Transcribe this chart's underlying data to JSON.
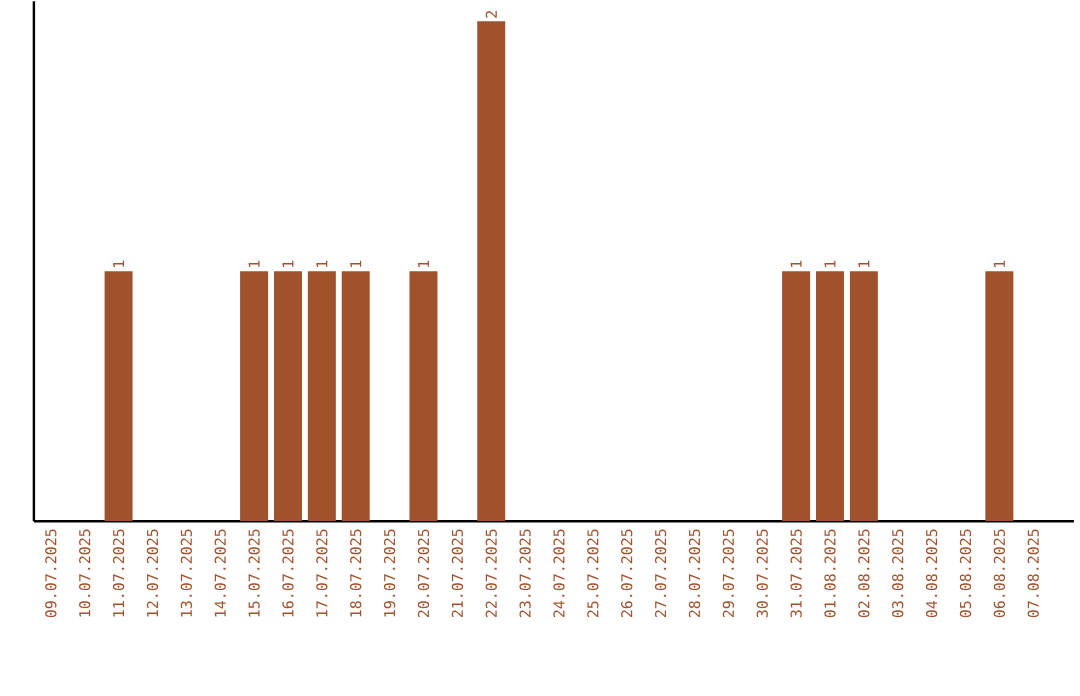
{
  "chart_data": {
    "type": "bar",
    "categories": [
      "09.07.2025",
      "10.07.2025",
      "11.07.2025",
      "12.07.2025",
      "13.07.2025",
      "14.07.2025",
      "15.07.2025",
      "16.07.2025",
      "17.07.2025",
      "18.07.2025",
      "19.07.2025",
      "20.07.2025",
      "21.07.2025",
      "22.07.2025",
      "23.07.2025",
      "24.07.2025",
      "25.07.2025",
      "26.07.2025",
      "27.07.2025",
      "28.07.2025",
      "29.07.2025",
      "30.07.2025",
      "31.07.2025",
      "01.08.2025",
      "02.08.2025",
      "03.08.2025",
      "04.08.2025",
      "05.08.2025",
      "06.08.2025",
      "07.08.2025"
    ],
    "values": [
      0,
      0,
      1,
      0,
      0,
      0,
      1,
      1,
      1,
      1,
      0,
      1,
      0,
      2,
      0,
      0,
      0,
      0,
      0,
      0,
      0,
      0,
      1,
      1,
      1,
      0,
      0,
      0,
      1,
      0
    ],
    "value_labels": [
      null,
      null,
      "1",
      null,
      null,
      null,
      "1",
      "1",
      "1",
      "1",
      null,
      "1",
      null,
      "2",
      null,
      null,
      null,
      null,
      null,
      null,
      null,
      null,
      "1",
      "1",
      "1",
      null,
      null,
      null,
      "1",
      null
    ],
    "color": "#a0522d",
    "ylim": [
      0,
      2.08
    ]
  }
}
